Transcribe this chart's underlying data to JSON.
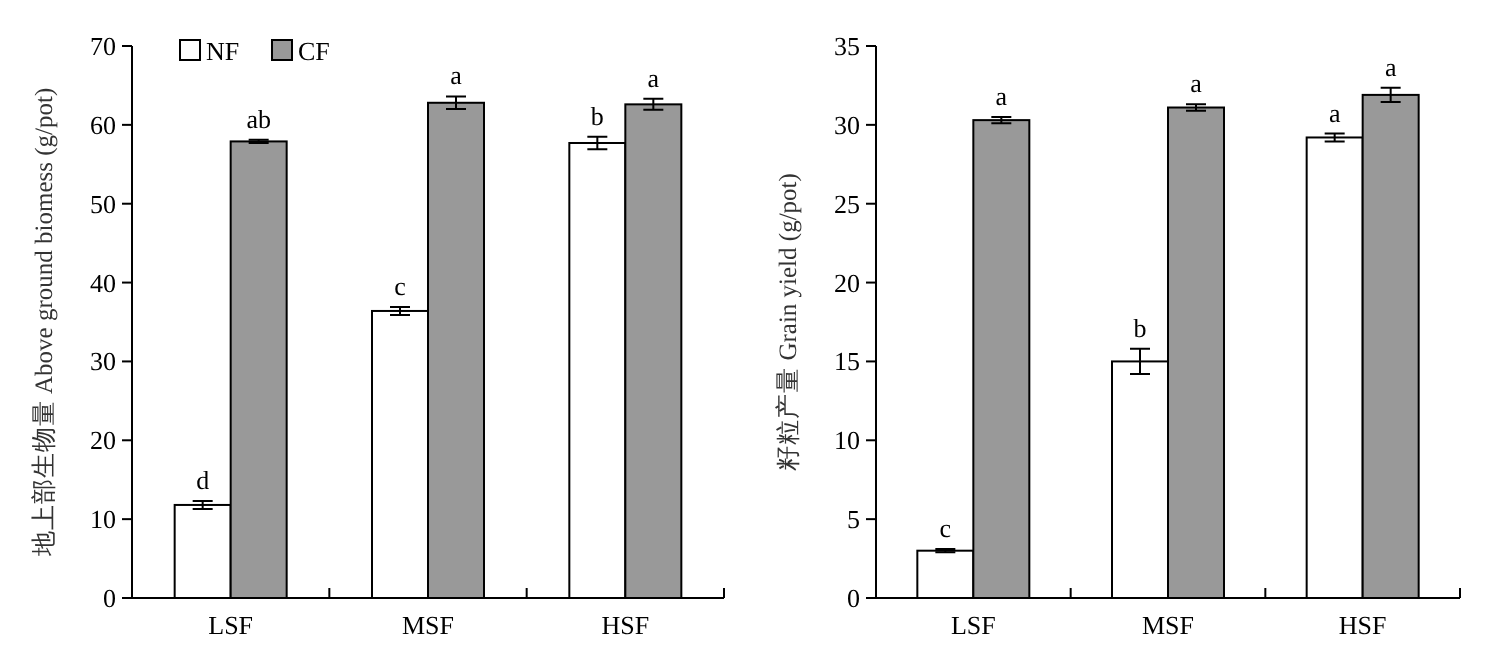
{
  "chart_data": [
    {
      "type": "bar",
      "categories": [
        "LSF",
        "MSF",
        "HSF"
      ],
      "ylabel": "地上部生物量 Above ground biomess (g/pot)",
      "ylim": [
        0,
        70
      ],
      "yticks": [
        0,
        10,
        20,
        30,
        40,
        50,
        60,
        70
      ],
      "legend": "top left",
      "series": [
        {
          "name": "NF",
          "color": "#ffffff",
          "values": [
            11.8,
            36.4,
            57.7
          ],
          "errors": [
            0.5,
            0.5,
            0.8
          ]
        },
        {
          "name": "CF",
          "color": "#999999",
          "values": [
            57.9,
            62.8,
            62.6
          ],
          "errors": [
            0.2,
            0.8,
            0.7
          ]
        }
      ],
      "annotations": [
        {
          "text": "d",
          "x": "LSF",
          "y": 11.8
        },
        {
          "text": "ab",
          "x": "LSF",
          "y": 57.9
        },
        {
          "text": "c",
          "x": "MSF",
          "y": 36.4
        },
        {
          "text": "a",
          "x": "MSF",
          "y": 62.8
        },
        {
          "text": "b",
          "x": "HSF",
          "y": 57.7
        },
        {
          "text": "a",
          "x": "HSF",
          "y": 62.6
        }
      ]
    },
    {
      "type": "bar",
      "categories": [
        "LSF",
        "MSF",
        "HSF"
      ],
      "ylabel": "籽粒产量 Grain yield (g/pot)",
      "ylim": [
        0,
        35
      ],
      "yticks": [
        0,
        5,
        10,
        15,
        20,
        25,
        30,
        35
      ],
      "series": [
        {
          "color": "#ffffff",
          "values": [
            3.0,
            15.0,
            29.2
          ],
          "errors": [
            0.1,
            0.8,
            0.25
          ]
        },
        {
          "color": "#999999",
          "values": [
            30.3,
            31.1,
            31.9
          ],
          "errors": [
            0.2,
            0.2,
            0.45
          ]
        }
      ],
      "annotations": [
        {
          "text": "c",
          "x": "LSF",
          "y": 3.0
        },
        {
          "text": "a",
          "x": "LSF",
          "y": 30.3
        },
        {
          "text": "b",
          "x": "MSF",
          "y": 15.0
        },
        {
          "text": "a",
          "x": "MSF",
          "y": 31.1
        },
        {
          "text": "a",
          "x": "HSF",
          "y": 29.2
        },
        {
          "text": "a",
          "x": "HSF",
          "y": 31.9
        }
      ]
    }
  ]
}
